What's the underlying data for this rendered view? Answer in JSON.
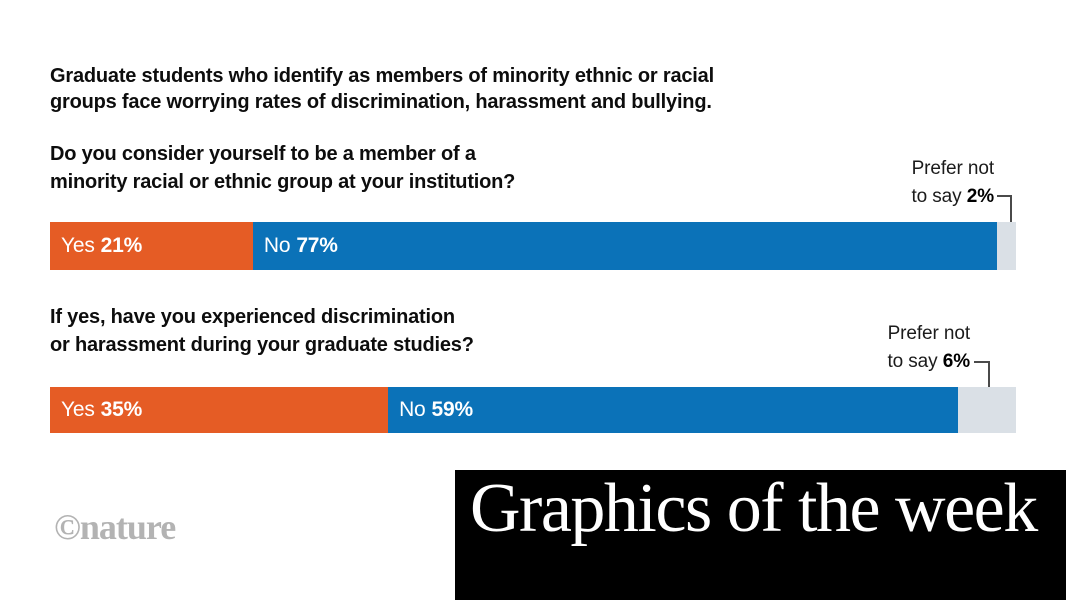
{
  "colors": {
    "yes_segment": "#E55C25",
    "no_segment": "#0B72B8",
    "prefer_segment": "#DAE0E6",
    "banner_background": "#000000",
    "banner_text": "#FFFFFF",
    "heading_text": "#0D0D0D",
    "annotation_connector": "#4A4A4A",
    "nature_logo_gray": "#B3B3B3"
  },
  "intro": {
    "line1": "Graduate students who identify as members of minority ethnic or racial",
    "line2": "groups face worrying rates of discrimination, harassment and bullying."
  },
  "footer": {
    "nature_logo": "©nature",
    "banner_title": "Graphics of the week"
  },
  "chart_data": [
    {
      "type": "bar",
      "orientation": "horizontal_stacked",
      "title_lines": [
        "Do you consider yourself to be a member of a",
        "minority racial or ethnic group at your institution?"
      ],
      "categories": [
        "Yes",
        "No",
        "Prefer not to say"
      ],
      "values": [
        21,
        77,
        2
      ],
      "unit": "%",
      "value_labels": [
        "21%",
        "77%",
        "2%"
      ],
      "annotation": {
        "line1": "Prefer not",
        "line2": "to say"
      },
      "xlim": [
        0,
        100
      ],
      "legend": "none",
      "colors": [
        "#E55C25",
        "#0B72B8",
        "#DAE0E6"
      ]
    },
    {
      "type": "bar",
      "orientation": "horizontal_stacked",
      "title_lines": [
        "If yes, have you experienced discrimination",
        "or harassment during your graduate studies?"
      ],
      "categories": [
        "Yes",
        "No",
        "Prefer not to say"
      ],
      "values": [
        35,
        59,
        6
      ],
      "unit": "%",
      "value_labels": [
        "35%",
        "59%",
        "6%"
      ],
      "annotation": {
        "line1": "Prefer not",
        "line2": "to say"
      },
      "xlim": [
        0,
        100
      ],
      "legend": "none",
      "colors": [
        "#E55C25",
        "#0B72B8",
        "#DAE0E6"
      ]
    }
  ]
}
